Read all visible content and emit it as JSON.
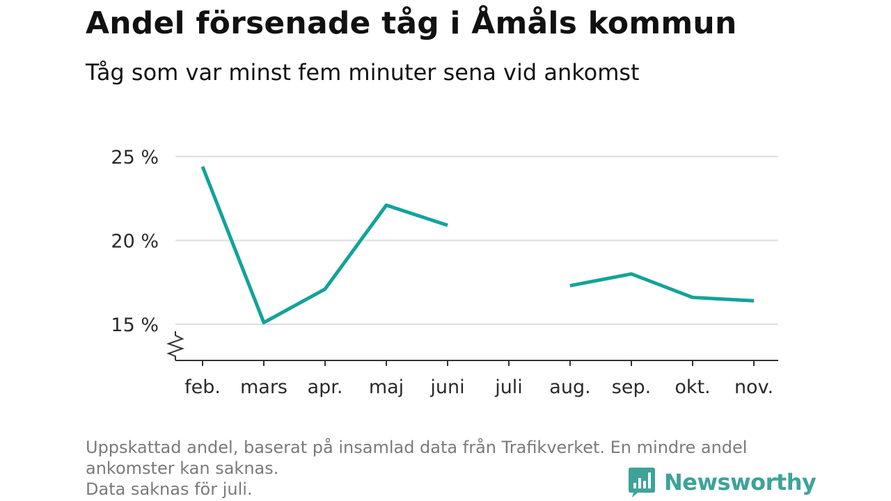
{
  "header": {
    "title": "Andel försenade tåg i Åmåls kommun",
    "subtitle": "Tåg som var minst fem minuter sena vid ankomst"
  },
  "footnote": {
    "line1": "Uppskattad andel, baserat på insamlad data från Trafikverket. En mindre andel",
    "line2": "ankomster kan saknas.",
    "line3": "Data saknas för juli."
  },
  "logo": {
    "text": "Newsworthy",
    "icon": "bar-chart-speech-bubble-icon"
  },
  "colors": {
    "line": "#12a39a",
    "grid": "#dddddd",
    "axis": "#333333",
    "logo": "#3da399"
  },
  "chart_data": {
    "type": "line",
    "title": "Andel försenade tåg i Åmåls kommun",
    "subtitle": "Tåg som var minst fem minuter sena vid ankomst",
    "xlabel": "",
    "ylabel": "",
    "categories": [
      "feb.",
      "mars",
      "apr.",
      "maj",
      "juni",
      "juli",
      "aug.",
      "sep.",
      "okt.",
      "nov."
    ],
    "series": [
      {
        "values": [
          24.4,
          15.1,
          17.1,
          22.1,
          20.9,
          null,
          17.3,
          18.0,
          16.6,
          16.4
        ]
      }
    ],
    "yticks": [
      15,
      20,
      25
    ],
    "ytick_labels": [
      "15 %",
      "20 %",
      "25 %"
    ],
    "ylim": [
      13,
      25
    ],
    "axis_break": true,
    "grid": true,
    "legend": "none"
  }
}
